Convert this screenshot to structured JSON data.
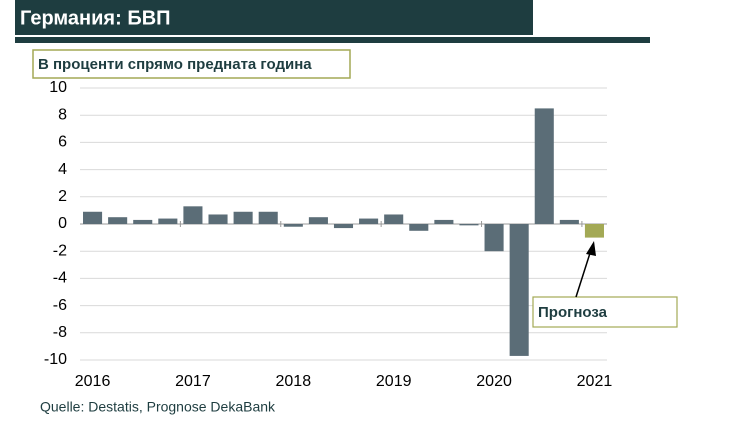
{
  "chart_data": {
    "type": "bar",
    "title": "Германия: БВП",
    "subtitle": "В проценти спрямо предната година",
    "categories": [
      "2016",
      null,
      null,
      null,
      "2017",
      null,
      null,
      null,
      "2018",
      null,
      null,
      null,
      "2019",
      null,
      null,
      null,
      "2020",
      null,
      null,
      null,
      "2021"
    ],
    "values": [
      0.9,
      0.5,
      0.3,
      0.4,
      1.3,
      0.7,
      0.9,
      0.9,
      -0.2,
      0.5,
      -0.3,
      0.4,
      0.7,
      -0.5,
      0.3,
      -0.1,
      -2.0,
      -9.7,
      8.5,
      0.3,
      -1.0
    ],
    "colors": [
      "#5b6d77",
      "#5b6d77",
      "#5b6d77",
      "#5b6d77",
      "#5b6d77",
      "#5b6d77",
      "#5b6d77",
      "#5b6d77",
      "#5b6d77",
      "#5b6d77",
      "#5b6d77",
      "#5b6d77",
      "#5b6d77",
      "#5b6d77",
      "#5b6d77",
      "#5b6d77",
      "#5b6d77",
      "#5b6d77",
      "#5b6d77",
      "#5b6d77",
      "#a3a955"
    ],
    "ylim": [
      -10,
      10
    ],
    "yticks": [
      -10,
      -8,
      -6,
      -4,
      -2,
      0,
      2,
      4,
      6,
      8,
      10
    ],
    "grid": true,
    "annotation": "Прогноза",
    "source": "Quelle: Destatis, Prognose DekaBank"
  }
}
